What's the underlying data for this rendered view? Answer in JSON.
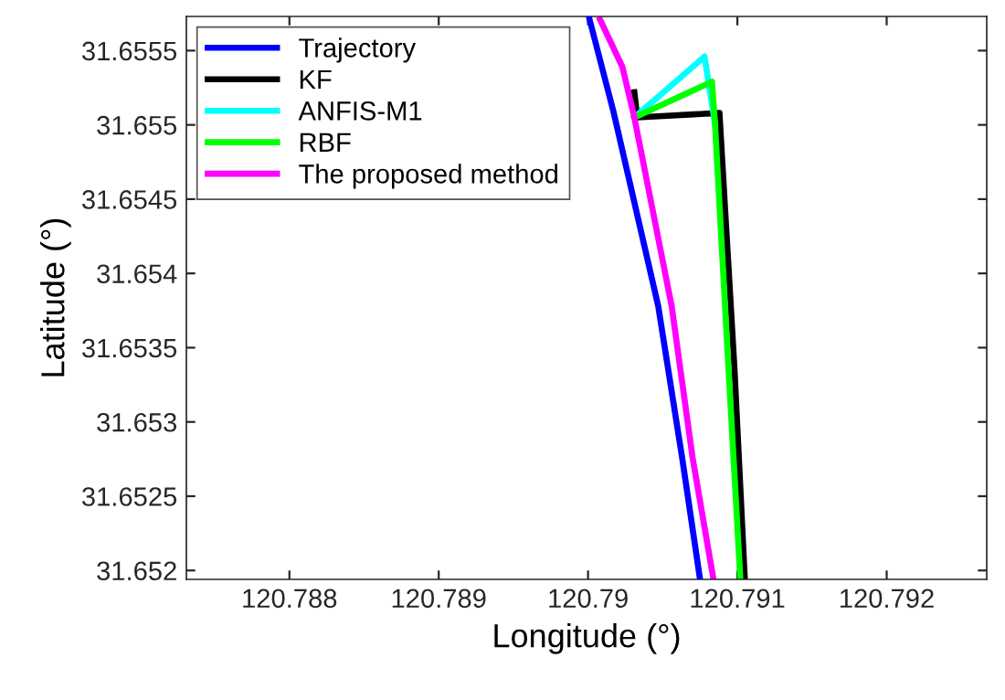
{
  "chart_data": {
    "type": "line",
    "xlabel": "Longitude (°)",
    "ylabel": "Latitude (°)",
    "xlim": [
      120.78731,
      120.79267
    ],
    "ylim": [
      31.65194,
      31.65573
    ],
    "xticks": [
      120.788,
      120.789,
      120.79,
      120.791,
      120.792
    ],
    "yticks": [
      31.652,
      31.6525,
      31.653,
      31.6535,
      31.654,
      31.6545,
      31.655,
      31.6555
    ],
    "grid": false,
    "legend": "top left",
    "line_style": "solid",
    "marker": "none",
    "series": [
      {
        "name": "Trajectory",
        "color": "#0000ff",
        "x": [
          120.79001,
          120.79017,
          120.79047,
          120.79063,
          120.79075
        ],
        "values": [
          31.65571,
          31.65509,
          31.65378,
          31.65276,
          31.65194
        ]
      },
      {
        "name": "KF",
        "color": "#000000",
        "x": [
          120.79031,
          120.79033,
          120.79088,
          120.79098,
          120.79105
        ],
        "values": [
          31.65522,
          31.65505,
          31.65508,
          31.65337,
          31.65194
        ]
      },
      {
        "name": "ANFIS-M1",
        "color": "#00ffff",
        "x": [
          120.79031,
          120.79078,
          120.79085
        ],
        "values": [
          31.65505,
          31.65546,
          31.65501
        ]
      },
      {
        "name": "RBF",
        "color": "#00ff00",
        "x": [
          120.79031,
          120.79083,
          120.79085,
          120.79094,
          120.79102
        ],
        "values": [
          31.65505,
          31.65529,
          31.65501,
          31.65337,
          31.65194
        ]
      },
      {
        "name": "The proposed method",
        "color": "#ff00ff",
        "x": [
          120.79008,
          120.79023,
          120.79031,
          120.79056,
          120.7907,
          120.79084
        ],
        "values": [
          31.65571,
          31.65539,
          31.65505,
          31.65378,
          31.65276,
          31.65194
        ]
      }
    ]
  }
}
